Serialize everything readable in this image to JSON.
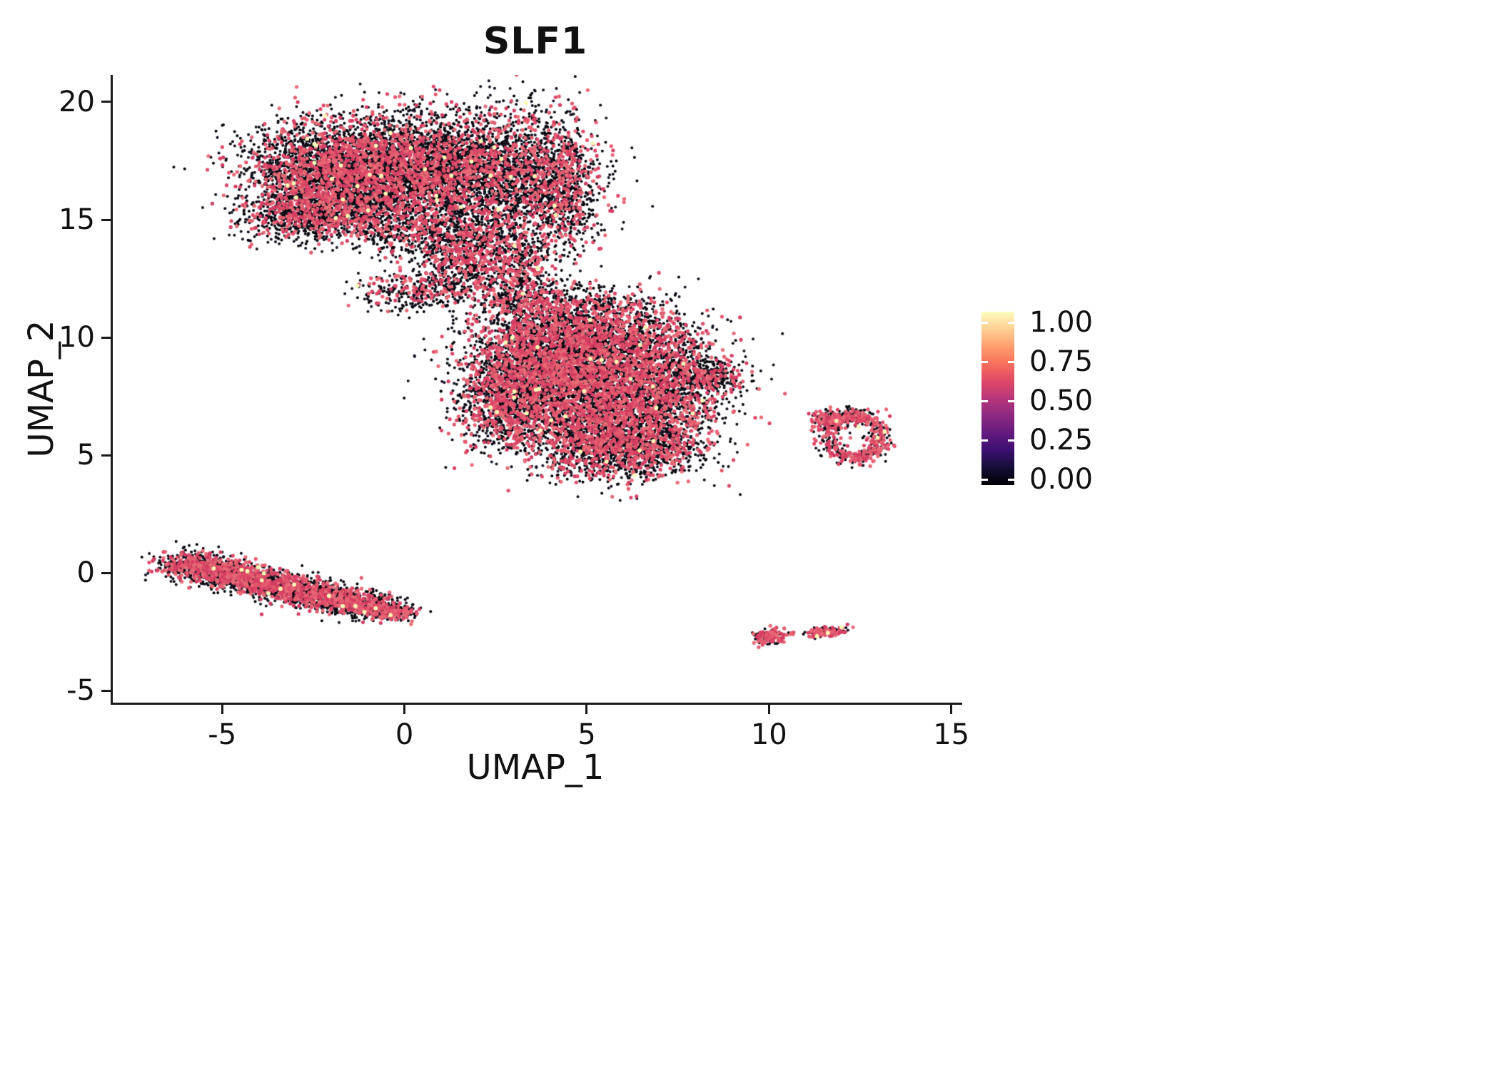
{
  "title": "SLF1",
  "axes": {
    "xlabel": "UMAP_1",
    "ylabel": "UMAP_2",
    "x_tick_labels": [
      "-5",
      "0",
      "5",
      "10",
      "15"
    ],
    "y_tick_labels": [
      "-5",
      "0",
      "5",
      "10",
      "15",
      "20"
    ]
  },
  "legend": {
    "ticks": [
      "1.00",
      "0.75",
      "0.50",
      "0.25",
      "0.00"
    ],
    "gradient_top_to_bottom": [
      "#fcfdbf",
      "#fecf92",
      "#fe9f6d",
      "#f7705c",
      "#de4968",
      "#b73779",
      "#8c2981",
      "#641a80",
      "#3b0f70",
      "#140e36",
      "#000004"
    ]
  },
  "chart_data": {
    "type": "scatter",
    "title": "SLF1",
    "xlabel": "UMAP_1",
    "ylabel": "UMAP_2",
    "xlim": [
      -8.0,
      15.3
    ],
    "ylim": [
      -5.5,
      21.15
    ],
    "x_ticks": [
      -5,
      0,
      5,
      10,
      15
    ],
    "y_ticks": [
      -5,
      0,
      5,
      10,
      15,
      20
    ],
    "grid": false,
    "legend_position": "right",
    "colorbar_range": [
      0.0,
      1.0
    ],
    "point_style": {
      "black_palette": [
        "#000004",
        "#0b0a16",
        "#14121f"
      ],
      "pink_palette": [
        "#de4968",
        "#e35a6f",
        "#d43d62",
        "#e86a77"
      ],
      "yellow_color": "#fbfcb8",
      "yellow_frac": 0.003,
      "black_radius_px": 2.0,
      "pink_radius_px": 2.6
    },
    "component_format": [
      "cx",
      "cy",
      "sx",
      "sy",
      "n"
    ],
    "clusters": [
      {
        "name": "upper-blob",
        "pink_frac": 0.28,
        "components": [
          [
            -2.3,
            16.9,
            1.05,
            1.15,
            2400
          ],
          [
            -0.4,
            17.3,
            1.15,
            1.05,
            2300
          ],
          [
            1.5,
            17.1,
            0.95,
            1.25,
            1700
          ],
          [
            3.5,
            16.8,
            0.95,
            1.5,
            1600
          ],
          [
            4.4,
            16.0,
            0.45,
            1.2,
            400
          ],
          [
            -2.9,
            15.1,
            0.8,
            0.45,
            450
          ],
          [
            -1.2,
            15.3,
            1.0,
            0.6,
            600
          ],
          [
            0.9,
            14.4,
            1.0,
            0.7,
            650
          ],
          [
            2.2,
            13.8,
            0.7,
            0.7,
            350
          ],
          [
            1.4,
            12.7,
            0.55,
            0.75,
            300
          ],
          [
            0.1,
            11.9,
            0.8,
            0.4,
            260
          ],
          [
            2.8,
            12.0,
            0.5,
            0.8,
            240
          ],
          [
            3.3,
            13.0,
            0.5,
            0.6,
            200
          ]
        ]
      },
      {
        "name": "central-blob",
        "pink_frac": 0.33,
        "components": [
          [
            4.0,
            9.6,
            1.15,
            1.15,
            2100
          ],
          [
            6.0,
            9.2,
            1.2,
            1.1,
            2100
          ],
          [
            4.3,
            7.2,
            1.25,
            1.05,
            1900
          ],
          [
            6.4,
            6.6,
            1.05,
            1.0,
            1500
          ],
          [
            5.4,
            5.2,
            1.0,
            0.65,
            900
          ],
          [
            3.0,
            8.2,
            0.7,
            1.0,
            650
          ],
          [
            2.6,
            6.7,
            0.55,
            0.8,
            350
          ],
          [
            7.6,
            8.1,
            0.7,
            0.8,
            500
          ],
          [
            8.5,
            8.3,
            0.45,
            0.35,
            200
          ],
          [
            7.2,
            5.3,
            0.6,
            0.5,
            250
          ],
          [
            5.0,
            11.2,
            0.9,
            0.5,
            300
          ],
          [
            3.6,
            11.6,
            0.5,
            0.5,
            150
          ]
        ]
      },
      {
        "name": "lower-left-streak",
        "pink_frac": 0.35,
        "components": [
          [
            -5.9,
            0.3,
            0.45,
            0.28,
            420
          ],
          [
            -5.1,
            0.1,
            0.5,
            0.28,
            450
          ],
          [
            -4.3,
            -0.2,
            0.5,
            0.28,
            450
          ],
          [
            -3.5,
            -0.5,
            0.5,
            0.28,
            450
          ],
          [
            -2.7,
            -0.8,
            0.5,
            0.28,
            430
          ],
          [
            -1.9,
            -1.1,
            0.5,
            0.26,
            420
          ],
          [
            -1.1,
            -1.4,
            0.45,
            0.24,
            380
          ],
          [
            -0.35,
            -1.65,
            0.35,
            0.18,
            250
          ]
        ]
      },
      {
        "name": "right-ring",
        "pink_frac": 0.45,
        "ring": {
          "cx": 12.35,
          "cy": 5.75,
          "rx": 0.72,
          "ry": 0.92,
          "r_sd": 0.17,
          "n": 520
        },
        "components": [
          [
            11.6,
            6.5,
            0.2,
            0.18,
            130
          ],
          [
            12.4,
            6.6,
            0.3,
            0.2,
            80
          ]
        ]
      },
      {
        "name": "small-bottom-dot",
        "pink_frac": 0.55,
        "components": [
          [
            10.0,
            -2.72,
            0.2,
            0.16,
            160
          ],
          [
            10.6,
            -2.6,
            0.08,
            0.06,
            8
          ]
        ]
      },
      {
        "name": "small-bottom-dash",
        "pink_frac": 0.5,
        "components": [
          [
            11.35,
            -2.55,
            0.18,
            0.09,
            70
          ],
          [
            11.75,
            -2.45,
            0.22,
            0.1,
            90
          ]
        ]
      }
    ]
  }
}
